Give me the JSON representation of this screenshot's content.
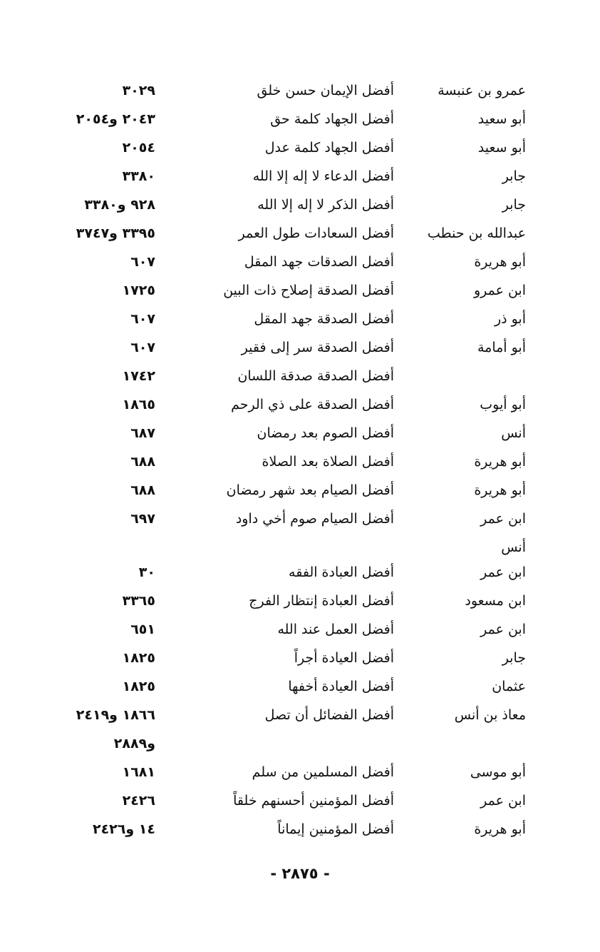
{
  "rows": [
    {
      "narrator": "عمرو بن عنبسة",
      "hadith": "أفضل الإيمان حسن خلق",
      "refs": "٣٠٢٩"
    },
    {
      "narrator": "أبو سعيد",
      "hadith": "أفضل الجهاد كلمة حق",
      "refs": "٢٠٤٣ و٢٠٥٤"
    },
    {
      "narrator": "أبو سعيد",
      "hadith": "أفضل الجهاد كلمة عدل",
      "refs": "٢٠٥٤"
    },
    {
      "narrator": "جابر",
      "hadith": "أفضل الدعاء لا إله إلا الله",
      "refs": "٣٣٨٠"
    },
    {
      "narrator": "جابر",
      "hadith": "أفضل الذكر لا إله إلا الله",
      "refs": "٩٢٨ و٣٣٨٠"
    },
    {
      "narrator": "عبدالله بن حنطب",
      "hadith": "أفضل السعادات طول العمر",
      "refs": "٣٣٩٥ و٣٧٤٧"
    },
    {
      "narrator": "أبو هريرة",
      "hadith": "أفضل الصدقات جهد المقل",
      "refs": "٦٠٧"
    },
    {
      "narrator": "ابن عمرو",
      "hadith": "أفضل الصدقة إصلاح ذات البين",
      "refs": "١٧٢٥"
    },
    {
      "narrator": "أبو ذر",
      "hadith": "أفضل الصدقة جهد المقل",
      "refs": "٦٠٧"
    },
    {
      "narrator": "أبو أمامة",
      "hadith": "أفضل الصدقة سر إلى فقير",
      "refs": "٦٠٧"
    },
    {
      "narrator": "",
      "hadith": "أفضل الصدقة صدقة اللسان",
      "refs": "١٧٤٢"
    },
    {
      "narrator": "أبو أيوب",
      "hadith": "أفضل الصدقة على ذي الرحم",
      "refs": "١٨٦٥"
    },
    {
      "narrator": "أنس",
      "hadith": "أفضل الصوم بعد رمضان",
      "refs": "٦٨٧"
    },
    {
      "narrator": "أبو هريرة",
      "hadith": "أفضل الصلاة بعد الصلاة",
      "refs": "٦٨٨"
    },
    {
      "narrator": "أبو هريرة",
      "hadith": "أفضل الصيام بعد شهر رمضان",
      "refs": "٦٨٨"
    },
    {
      "narrator": "ابن عمر",
      "hadith": "أفضل الصيام صوم أخي داود",
      "refs": "٦٩٧"
    },
    {
      "narrator": "أنس",
      "hadith": "",
      "refs": ""
    },
    {
      "narrator": "ابن عمر",
      "hadith": "أفضل العبادة الفقه",
      "refs": "٣٠"
    },
    {
      "narrator": "ابن مسعود",
      "hadith": "أفضل العبادة إنتظار الفرج",
      "refs": "٣٣٦٥"
    },
    {
      "narrator": "ابن عمر",
      "hadith": "أفضل العمل عند الله",
      "refs": "٦٥١"
    },
    {
      "narrator": "جابر",
      "hadith": "أفضل العيادة أجراً",
      "refs": "١٨٢٥"
    },
    {
      "narrator": "عثمان",
      "hadith": "أفضل العيادة أخفها",
      "refs": "١٨٢٥"
    },
    {
      "narrator": "معاذ بن أنس",
      "hadith": "أفضل الفضائل أن تصل",
      "refs": "١٨٦٦  و٢٤١٩"
    },
    {
      "narrator": "",
      "hadith": "",
      "refs": "و٢٨٨٩"
    },
    {
      "narrator": "أبو موسى",
      "hadith": "أفضل المسلمين من سلم",
      "refs": "١٦٨١"
    },
    {
      "narrator": "ابن عمر",
      "hadith": "أفضل المؤمنين أحسنهم خلقاً",
      "refs": "٢٤٢٦"
    },
    {
      "narrator": "أبو هريرة",
      "hadith": "أفضل المؤمنين إيماناً",
      "refs": "١٤ و٢٤٢٦"
    }
  ],
  "page_number": "- ٢٨٧٥ -"
}
